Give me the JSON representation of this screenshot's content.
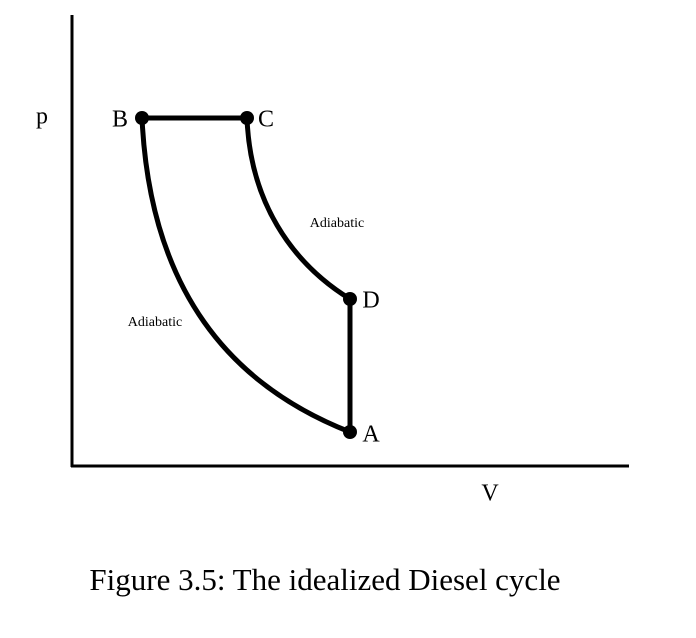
{
  "axes": {
    "y_label": "p",
    "x_label": "V"
  },
  "points": [
    {
      "label": "B"
    },
    {
      "label": "C"
    },
    {
      "label": "D"
    },
    {
      "label": "A"
    }
  ],
  "curves": [
    {
      "label": "Adiabatic"
    },
    {
      "label": "Adiabatic"
    }
  ],
  "caption": "Figure 3.5: The idealized Diesel cycle"
}
